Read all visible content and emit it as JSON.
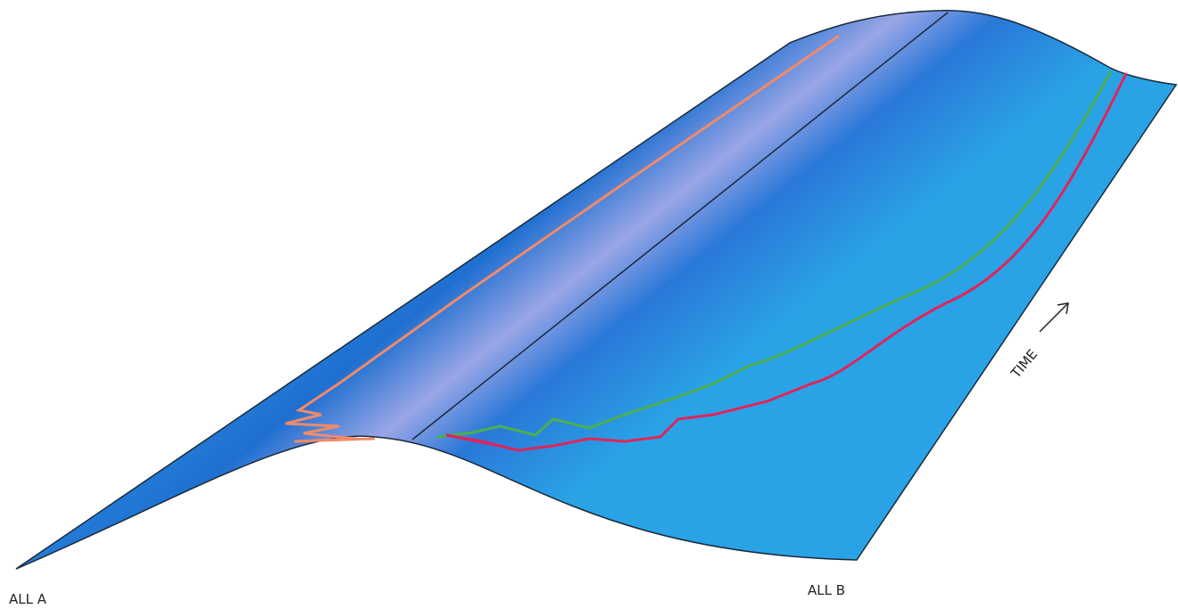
{
  "labels": {
    "left": "ALL A",
    "right": "ALL B",
    "time": "TIME"
  }
}
